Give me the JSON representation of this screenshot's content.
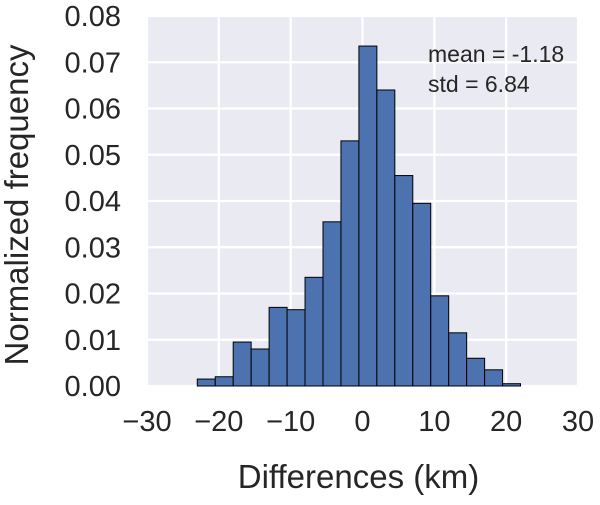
{
  "chart_data": {
    "type": "histogram",
    "title": "",
    "xlabel": "Differences (km)",
    "ylabel": "Normalized frequency",
    "xlim": [
      -30,
      30
    ],
    "ylim": [
      0,
      0.08
    ],
    "xticks": [
      -30,
      -20,
      -10,
      0,
      10,
      20,
      30
    ],
    "xtick_labels": [
      "−30",
      "−20",
      "−10",
      "0",
      "10",
      "20",
      "30"
    ],
    "yticks": [
      0.0,
      0.01,
      0.02,
      0.03,
      0.04,
      0.05,
      0.06,
      0.07,
      0.08
    ],
    "ytick_labels": [
      "0.00",
      "0.01",
      "0.02",
      "0.03",
      "0.04",
      "0.05",
      "0.06",
      "0.07",
      "0.08"
    ],
    "grid": true,
    "bar_color": "#4c72b0",
    "background_color": "#eaeaf2",
    "grid_color": "#ffffff",
    "bins": [
      {
        "x0": -23.0,
        "x1": -20.5,
        "value": 0.0015
      },
      {
        "x0": -20.5,
        "x1": -18.0,
        "value": 0.002
      },
      {
        "x0": -18.0,
        "x1": -15.5,
        "value": 0.0095
      },
      {
        "x0": -15.5,
        "x1": -13.0,
        "value": 0.008
      },
      {
        "x0": -13.0,
        "x1": -10.5,
        "value": 0.017
      },
      {
        "x0": -10.5,
        "x1": -8.0,
        "value": 0.0165
      },
      {
        "x0": -8.0,
        "x1": -5.5,
        "value": 0.0235
      },
      {
        "x0": -5.5,
        "x1": -3.0,
        "value": 0.0355
      },
      {
        "x0": -3.0,
        "x1": -0.5,
        "value": 0.053
      },
      {
        "x0": -0.5,
        "x1": 2.0,
        "value": 0.0735
      },
      {
        "x0": 2.0,
        "x1": 4.5,
        "value": 0.064
      },
      {
        "x0": 4.5,
        "x1": 7.0,
        "value": 0.0455
      },
      {
        "x0": 7.0,
        "x1": 9.5,
        "value": 0.0395
      },
      {
        "x0": 9.5,
        "x1": 12.0,
        "value": 0.0195
      },
      {
        "x0": 12.0,
        "x1": 14.5,
        "value": 0.0115
      },
      {
        "x0": 14.5,
        "x1": 17.0,
        "value": 0.006
      },
      {
        "x0": 17.0,
        "x1": 19.5,
        "value": 0.0035
      },
      {
        "x0": 19.5,
        "x1": 22.0,
        "value": 0.0005
      },
      {
        "x0": 22.0,
        "x1": 24.5,
        "value": 0.0
      }
    ],
    "annotations": [
      "mean = -1.18",
      "std = 6.84"
    ]
  }
}
